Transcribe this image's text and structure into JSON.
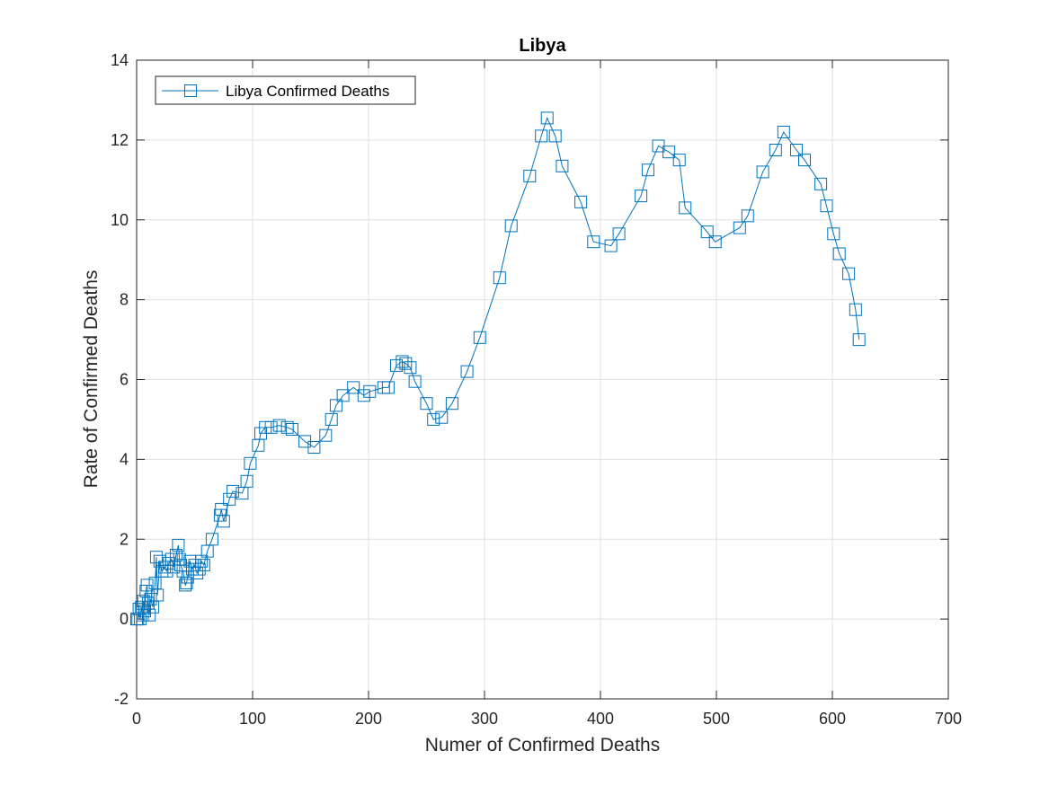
{
  "chart_data": {
    "type": "line",
    "title": "Libya",
    "xlabel": "Numer of Confirmed Deaths",
    "ylabel": "Rate of Confirmed Deaths",
    "xlim": [
      0,
      700
    ],
    "ylim": [
      -2,
      14
    ],
    "xticks": [
      0,
      100,
      200,
      300,
      400,
      500,
      600,
      700
    ],
    "yticks": [
      -2,
      0,
      2,
      4,
      6,
      8,
      10,
      12,
      14
    ],
    "xtick_labels": [
      "0",
      "100",
      "200",
      "300",
      "400",
      "500",
      "600",
      "700"
    ],
    "ytick_labels": [
      "-2",
      "0",
      "2",
      "4",
      "6",
      "8",
      "10",
      "12",
      "14"
    ],
    "grid": true,
    "legend_position": "top-left",
    "series": [
      {
        "name": "Libya Confirmed Deaths",
        "color": "#0072BD",
        "marker": "square",
        "x": [
          0,
          1,
          2,
          3,
          4,
          5,
          6,
          7,
          8,
          9,
          10,
          11,
          12,
          14,
          16,
          17,
          18,
          20,
          22,
          24,
          26,
          28,
          30,
          32,
          34,
          36,
          37,
          38,
          40,
          42,
          43,
          44,
          46,
          48,
          50,
          52,
          54,
          56,
          58,
          61,
          65,
          72,
          73,
          75,
          80,
          83,
          91,
          95,
          98,
          105,
          107,
          111,
          116,
          123,
          130,
          134,
          145,
          153,
          163,
          168,
          172,
          178,
          187,
          196,
          201,
          213,
          217,
          224,
          229,
          232,
          236,
          240,
          250,
          256,
          263,
          272,
          285,
          296,
          313,
          323,
          339,
          349,
          354,
          361,
          367,
          383,
          394,
          409,
          416,
          435,
          441,
          450,
          459,
          468,
          473,
          492,
          499,
          520,
          527,
          540,
          551,
          558,
          569,
          576,
          590,
          595,
          601,
          606,
          614,
          620,
          623
        ],
        "y": [
          0,
          0,
          0.25,
          0,
          0.3,
          0.1,
          0.45,
          0.2,
          0.7,
          0.85,
          0.4,
          0.1,
          0.5,
          0.3,
          0.9,
          1.55,
          0.6,
          1.45,
          1.2,
          1.3,
          1.2,
          1.4,
          1.5,
          1.3,
          1.6,
          1.85,
          1.5,
          1.35,
          1.2,
          0.85,
          0.9,
          1.05,
          1.45,
          1.25,
          1.35,
          1.15,
          1.25,
          1.45,
          1.35,
          1.7,
          2.0,
          2.6,
          2.75,
          2.45,
          3.0,
          3.2,
          3.15,
          3.45,
          3.9,
          4.35,
          4.65,
          4.8,
          4.8,
          4.85,
          4.8,
          4.75,
          4.45,
          4.3,
          4.6,
          5.0,
          5.35,
          5.6,
          5.8,
          5.6,
          5.7,
          5.8,
          5.8,
          6.35,
          6.45,
          6.4,
          6.3,
          5.95,
          5.4,
          5.0,
          5.05,
          5.4,
          6.2,
          7.05,
          8.55,
          9.85,
          11.1,
          12.1,
          12.55,
          12.1,
          11.35,
          10.45,
          9.45,
          9.35,
          9.65,
          10.6,
          11.25,
          11.85,
          11.7,
          11.5,
          10.3,
          9.7,
          9.45,
          9.8,
          10.1,
          11.2,
          11.75,
          12.2,
          11.75,
          11.5,
          10.9,
          10.35,
          9.65,
          9.15,
          8.65,
          7.75,
          7.0
        ]
      }
    ]
  }
}
